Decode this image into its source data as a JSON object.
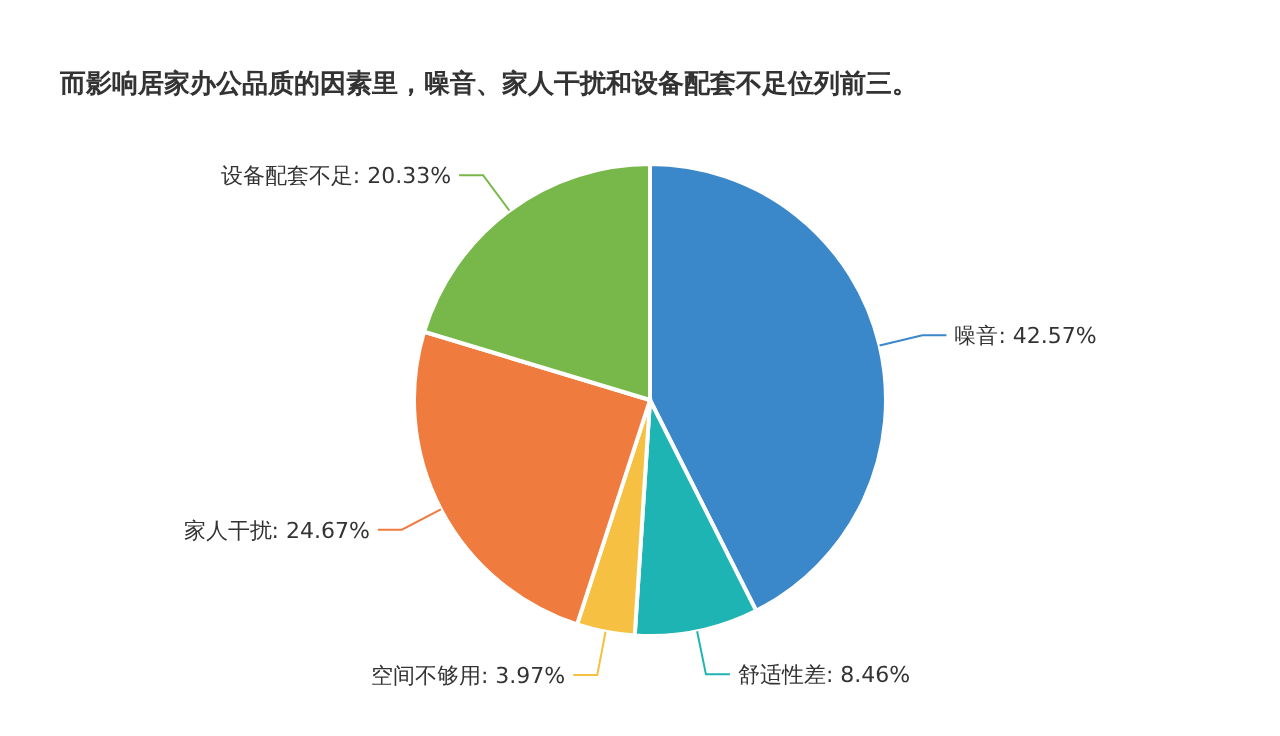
{
  "chart_data": {
    "type": "pie",
    "title": "而影响居家办公品质的因素里，噪音、家人干扰和设备配套不足位列前三。",
    "categories": [
      "噪音",
      "舒适性差",
      "空间不够用",
      "家人干扰",
      "设备配套不足"
    ],
    "values": [
      42.57,
      8.46,
      3.97,
      24.67,
      20.33
    ],
    "value_labels": [
      "42.57%",
      "8.46%",
      "3.97%",
      "24.67%",
      "20.33%"
    ],
    "colors": [
      "#3a87c9",
      "#1fb4b4",
      "#f6c142",
      "#ef7b3f",
      "#78b84a"
    ]
  }
}
